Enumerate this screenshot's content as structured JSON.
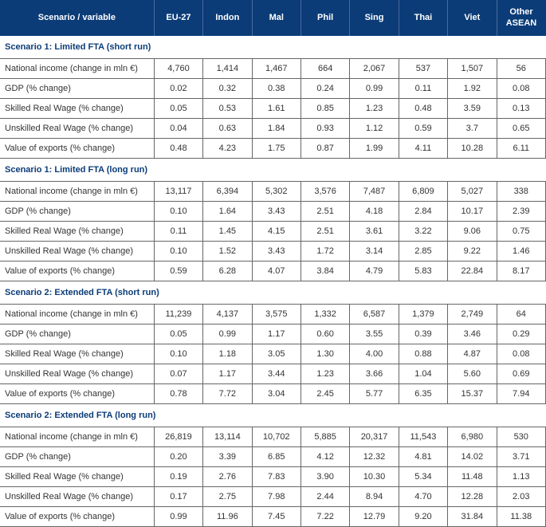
{
  "columns": [
    "Scenario / variable",
    "EU-27",
    "Indon",
    "Mal",
    "Phil",
    "Sing",
    "Thai",
    "Viet",
    "Other ASEAN"
  ],
  "colors": {
    "header_bg": "#0b3c78",
    "header_text": "#ffffff",
    "section_text": "#0b3c78",
    "body_text": "#333333",
    "border": "#666666",
    "background": "#ffffff"
  },
  "rowLabels": {
    "ni": "National income (change in mln €)",
    "ni2": "National income (change in  mln €)",
    "gdp": "GDP (% change)",
    "srw": "Skilled Real Wage (% change)",
    "urw": "Unskilled Real Wage (% change)",
    "exp": "Value of exports (% change)"
  },
  "sections": [
    {
      "title": "Scenario 1: Limited FTA (short run)",
      "rows": [
        {
          "label": "ni",
          "v": [
            "4,760",
            "1,414",
            "1,467",
            "664",
            "2,067",
            "537",
            "1,507",
            "56"
          ]
        },
        {
          "label": "gdp",
          "v": [
            "0.02",
            "0.32",
            "0.38",
            "0.24",
            "0.99",
            "0.11",
            "1.92",
            "0.08"
          ]
        },
        {
          "label": "srw",
          "v": [
            "0.05",
            "0.53",
            "1.61",
            "0.85",
            "1.23",
            "0.48",
            "3.59",
            "0.13"
          ]
        },
        {
          "label": "urw",
          "v": [
            "0.04",
            "0.63",
            "1.84",
            "0.93",
            "1.12",
            "0.59",
            "3.7",
            "0.65"
          ]
        },
        {
          "label": "exp",
          "v": [
            "0.48",
            "4.23",
            "1.75",
            "0.87",
            "1.99",
            "4.11",
            "10.28",
            "6.11"
          ]
        }
      ]
    },
    {
      "title": "Scenario 1: Limited FTA (long run)",
      "rows": [
        {
          "label": "ni",
          "v": [
            "13,117",
            "6,394",
            "5,302",
            "3,576",
            "7,487",
            "6,809",
            "5,027",
            "338"
          ]
        },
        {
          "label": "gdp",
          "v": [
            "0.10",
            "1.64",
            "3.43",
            "2.51",
            "4.18",
            "2.84",
            "10.17",
            "2.39"
          ]
        },
        {
          "label": "srw",
          "v": [
            "0.11",
            "1.45",
            "4.15",
            "2.51",
            "3.61",
            "3.22",
            "9.06",
            "0.75"
          ]
        },
        {
          "label": "urw",
          "v": [
            "0.10",
            "1.52",
            "3.43",
            "1.72",
            "3.14",
            "2.85",
            "9.22",
            "1.46"
          ]
        },
        {
          "label": "exp",
          "v": [
            "0.59",
            "6.28",
            "4.07",
            "3.84",
            "4.79",
            "5.83",
            "22.84",
            "8.17"
          ]
        }
      ]
    },
    {
      "title": "Scenario 2: Extended FTA (short run)",
      "rows": [
        {
          "label": "ni2",
          "v": [
            "11,239",
            "4,137",
            "3,575",
            "1,332",
            "6,587",
            "1,379",
            "2,749",
            "64"
          ]
        },
        {
          "label": "gdp",
          "v": [
            "0.05",
            "0.99",
            "1.17",
            "0.60",
            "3.55",
            "0.39",
            "3.46",
            "0.29"
          ]
        },
        {
          "label": "srw",
          "v": [
            "0.10",
            "1.18",
            "3.05",
            "1.30",
            "4.00",
            "0.88",
            "4.87",
            "0.08"
          ]
        },
        {
          "label": "urw",
          "v": [
            "0.07",
            "1.17",
            "3.44",
            "1.23",
            "3.66",
            "1.04",
            "5.60",
            "0.69"
          ]
        },
        {
          "label": "exp",
          "v": [
            "0.78",
            "7.72",
            "3.04",
            "2.45",
            "5.77",
            "6.35",
            "15.37",
            "7.94"
          ]
        }
      ]
    },
    {
      "title": "Scenario 2: Extended FTA (long run)",
      "rows": [
        {
          "label": "ni",
          "v": [
            "26,819",
            "13,114",
            "10,702",
            "5,885",
            "20,317",
            "11,543",
            "6,980",
            "530"
          ]
        },
        {
          "label": "gdp",
          "v": [
            "0.20",
            "3.39",
            "6.85",
            "4.12",
            "12.32",
            "4.81",
            "14.02",
            "3.71"
          ]
        },
        {
          "label": "srw",
          "v": [
            "0.19",
            "2.76",
            "7.83",
            "3.90",
            "10.30",
            "5.34",
            "11.48",
            "1.13"
          ]
        },
        {
          "label": "urw",
          "v": [
            "0.17",
            "2.75",
            "7.98",
            "2.44",
            "8.94",
            "4.70",
            "12.28",
            "2.03"
          ]
        },
        {
          "label": "exp",
          "v": [
            "0.99",
            "11.96",
            "7.45",
            "7.22",
            "12.79",
            "9.20",
            "31.84",
            "11.38"
          ]
        }
      ]
    }
  ]
}
